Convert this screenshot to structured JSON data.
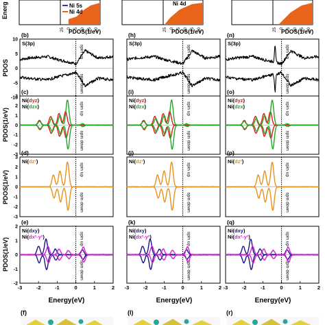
{
  "header": {
    "legend": [
      "Ni 5s",
      "Ni 4d"
    ],
    "legend_extra": "Ni 4d",
    "ylabel": "Energ",
    "xlabel": "PDOS(1/eV)",
    "ticks": [
      "25",
      "0",
      "5",
      "10",
      "15",
      "20"
    ],
    "colors": {
      "s": "#1f3fbf",
      "d": "#e8641a"
    }
  },
  "chart_data": {
    "type": "line",
    "xlabel": "Energy(eV)",
    "xlim": [
      -3,
      2
    ],
    "xticks": [
      "-3",
      "-2",
      "-1",
      "0",
      "1",
      "2"
    ],
    "fermi_level_x": 0,
    "annotations": {
      "spin_up": "spin up",
      "spin_down": "spin down"
    },
    "ylabel": "PDOS(1/eV)",
    "ylabel_short": "PDOS",
    "rows": [
      {
        "key": "s",
        "ylim": [
          -10,
          10
        ],
        "yticks": [
          "10",
          "5",
          "0",
          "-5",
          "-10"
        ],
        "legend": [
          {
            "label": "S(3p)",
            "color": "#000000",
            "plain": true
          }
        ],
        "panels": [
          "(b)",
          "(h)",
          "(n)"
        ]
      },
      {
        "key": "dyz",
        "ylim": [
          -3,
          3
        ],
        "yticks": [
          "3",
          "2",
          "1",
          "0",
          "-1",
          "-2",
          "-3"
        ],
        "legend": [
          {
            "prefix": "Ni(",
            "sub": "dyz",
            "suffix": ")",
            "color": "#e01b1b"
          },
          {
            "prefix": "Ni(",
            "sub": "dzx",
            "suffix": ")",
            "color": "#22a722"
          }
        ],
        "panels": [
          "(c)",
          "(i)",
          "(o)"
        ]
      },
      {
        "key": "dz2",
        "ylim": [
          -3,
          3
        ],
        "yticks": [
          "3",
          "2",
          "1",
          "0",
          "-1",
          "-2",
          "-3"
        ],
        "legend": [
          {
            "prefix": "Ni(",
            "sub": "dz²",
            "suffix": ")",
            "color": "#e8901a"
          }
        ],
        "panels": [
          "(d)",
          "(j)",
          "(p)"
        ]
      },
      {
        "key": "dxy",
        "ylim": [
          -2,
          2
        ],
        "yticks": [
          "2",
          "1",
          "0",
          "-1",
          "-2"
        ],
        "legend": [
          {
            "prefix": "Ni(",
            "sub": "dxy",
            "suffix": ")",
            "color": "#16168c"
          },
          {
            "prefix": "Ni(",
            "sub": "dx²-y²",
            "suffix": ")",
            "color": "#d21ed2"
          }
        ],
        "panels": [
          "(e)",
          "(k)",
          "(q)"
        ]
      }
    ],
    "structure_panels": [
      "(f)",
      "(l)",
      "(r)"
    ],
    "series": [
      {
        "name": "S(3p)",
        "row": 0,
        "column": "all",
        "color": "#000000",
        "shape": "broad band",
        "spin_up_max": [
          [
            -3,
            3
          ],
          [
            -2.5,
            3.5
          ],
          [
            -1.5,
            4
          ],
          [
            -1,
            3
          ],
          [
            -0.3,
            2
          ],
          [
            0,
            1.5
          ],
          [
            0.5,
            6
          ],
          [
            1.2,
            3.5
          ],
          [
            2,
            4
          ]
        ],
        "spin_down_min": [
          [
            -3,
            -3
          ],
          [
            -2.5,
            -3.5
          ],
          [
            -1.5,
            -4
          ],
          [
            -1,
            -3
          ],
          [
            -0.3,
            -2
          ],
          [
            0,
            -1.5
          ],
          [
            0.5,
            -6
          ],
          [
            1.2,
            -3.5
          ],
          [
            2,
            -4
          ]
        ],
        "peak_column_c": {
          "x": -0.35,
          "up": 9,
          "down": -9
        }
      },
      {
        "name": "Ni(dyz)",
        "row": 1,
        "column": "all",
        "color": "#e01b1b",
        "peaks": [
          [
            -1.95,
            0.5
          ],
          [
            -1.35,
            0.9
          ],
          [
            -0.9,
            1.2
          ],
          [
            -0.55,
            1.4
          ]
        ]
      },
      {
        "name": "Ni(dzx)",
        "row": 1,
        "column": "all",
        "color": "#22a722",
        "peaks": [
          [
            -1.95,
            0.4
          ],
          [
            -1.3,
            0.7
          ],
          [
            -0.85,
            1.0
          ],
          [
            -0.45,
            2.6
          ],
          [
            0.35,
            0.15
          ]
        ]
      },
      {
        "name": "Ni(dz²)",
        "row": 2,
        "column": "all",
        "color": "#e8901a",
        "peaks": [
          [
            -1.2,
            1.2
          ],
          [
            -0.85,
            1.6
          ],
          [
            -0.45,
            2.5
          ]
        ]
      },
      {
        "name": "Ni(dxy)",
        "row": 3,
        "column": "all",
        "color": "#16168c",
        "peaks": [
          [
            -2.0,
            0.6
          ],
          [
            -1.6,
            1.1
          ],
          [
            -1.1,
            0.4
          ],
          [
            0.35,
            0.35
          ]
        ]
      },
      {
        "name": "Ni(dx²-y²)",
        "row": 3,
        "column": "all",
        "color": "#d21ed2",
        "peaks": [
          [
            -1.5,
            0.6
          ],
          [
            -0.9,
            0.4
          ],
          [
            -0.4,
            0.3
          ],
          [
            0.4,
            0.55
          ]
        ]
      }
    ]
  }
}
